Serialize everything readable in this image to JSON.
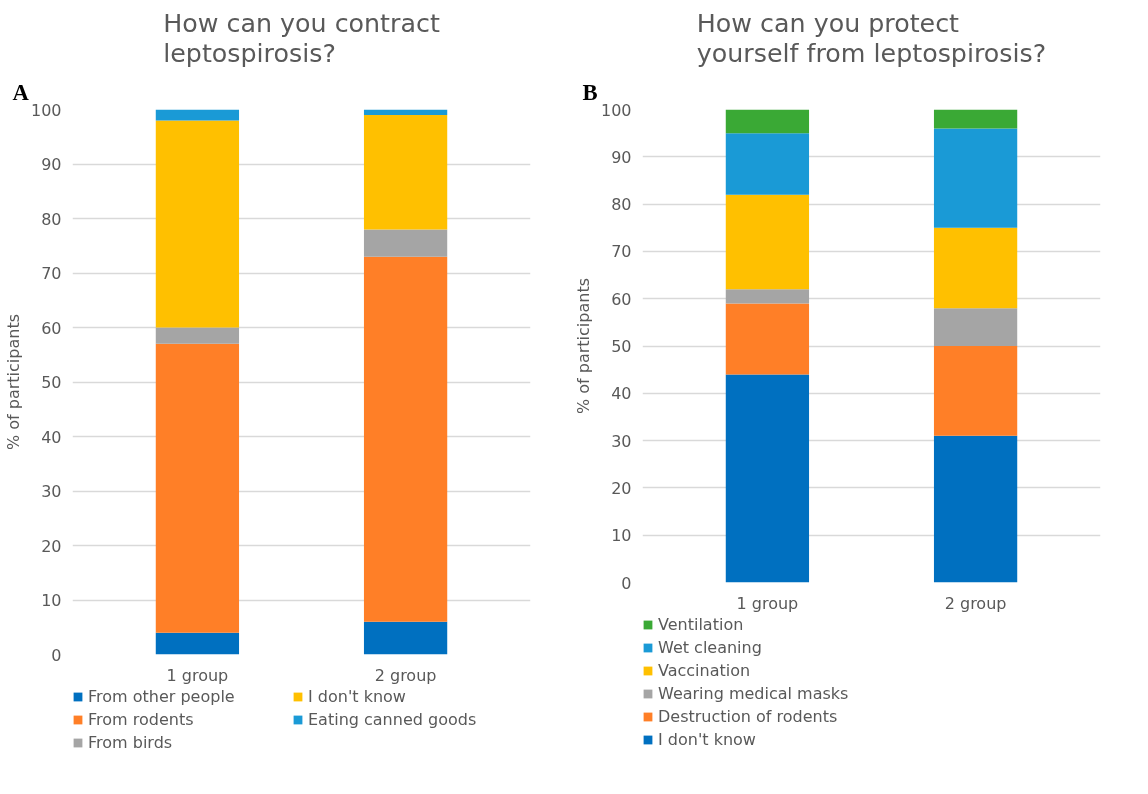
{
  "chart_data": [
    {
      "type": "bar",
      "title": "How can you contract\nleptospirosis?",
      "ylabel": "% of participants",
      "annotations": [
        "A"
      ],
      "categories": [
        "1 group",
        "2 group"
      ],
      "stacked": true,
      "ylim": [
        0,
        100
      ],
      "yticks": [
        0,
        10,
        20,
        30,
        40,
        50,
        60,
        70,
        80,
        90,
        100
      ],
      "grid": "y",
      "legend": "bottom",
      "series": [
        {
          "name": "From other people",
          "color": "#0070c0",
          "values": [
            4,
            6
          ]
        },
        {
          "name": "From rodents",
          "color": "#ff7f27",
          "values": [
            53,
            67
          ]
        },
        {
          "name": "From birds",
          "color": "#a5a5a5",
          "values": [
            3,
            5
          ]
        },
        {
          "name": "I don't know",
          "color": "#ffc000",
          "values": [
            38,
            21
          ]
        },
        {
          "name": "Eating canned goods",
          "color": "#1a9ad6",
          "values": [
            2,
            1
          ]
        }
      ]
    },
    {
      "type": "bar",
      "title": "How can you protect\nyourself from leptospirosis?",
      "ylabel": "% of participants",
      "annotations": [
        "B"
      ],
      "categories": [
        "1 group",
        "2 group"
      ],
      "stacked": true,
      "ylim": [
        0,
        100
      ],
      "yticks": [
        0,
        10,
        20,
        30,
        40,
        50,
        60,
        70,
        80,
        90,
        100
      ],
      "grid": "y",
      "legend": "bottom left",
      "series": [
        {
          "name": "I don't know",
          "color": "#0070c0",
          "values": [
            44,
            31
          ]
        },
        {
          "name": "Destruction of rodents",
          "color": "#ff7f27",
          "values": [
            15,
            19
          ]
        },
        {
          "name": "Wearing medical masks",
          "color": "#a5a5a5",
          "values": [
            3,
            8
          ]
        },
        {
          "name": "Vaccination",
          "color": "#ffc000",
          "values": [
            20,
            17
          ]
        },
        {
          "name": "Wet cleaning",
          "color": "#1a9ad6",
          "values": [
            13,
            21
          ]
        },
        {
          "name": "Ventilation",
          "color": "#3aa935",
          "values": [
            5,
            4
          ]
        }
      ]
    }
  ]
}
